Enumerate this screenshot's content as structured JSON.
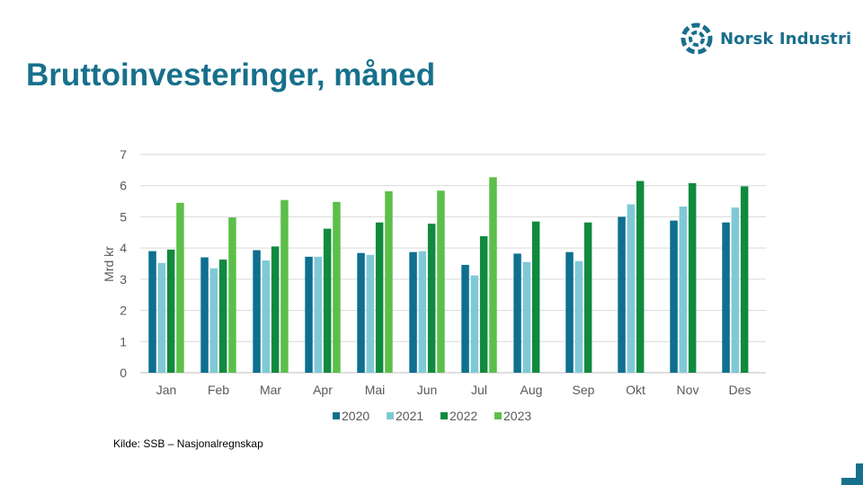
{
  "header": {
    "logo_text": "Norsk Industri",
    "title": "Bruttoinvesteringer, måned"
  },
  "footer": {
    "source": "Kilde: SSB – Nasjonalregnskap"
  },
  "colors": {
    "title": "#17708c",
    "s2020": "#0e6f8f",
    "s2021": "#7fc9d6",
    "s2022": "#108a3e",
    "s2023": "#5cbf4a",
    "grid": "#d9d9d9"
  },
  "chart_data": {
    "type": "bar",
    "title": "",
    "xlabel": "",
    "ylabel": "Mrd kr",
    "ylim": [
      0,
      7
    ],
    "yticks": [
      0,
      1,
      2,
      3,
      4,
      5,
      6,
      7
    ],
    "grid": true,
    "legend_position": "bottom",
    "categories": [
      "Jan",
      "Feb",
      "Mar",
      "Apr",
      "Mai",
      "Jun",
      "Jul",
      "Aug",
      "Sep",
      "Okt",
      "Nov",
      "Des"
    ],
    "series": [
      {
        "name": "2020",
        "values": [
          3.9,
          3.7,
          3.93,
          3.72,
          3.84,
          3.87,
          3.46,
          3.82,
          3.87,
          5.0,
          4.88,
          4.82
        ]
      },
      {
        "name": "2021",
        "values": [
          3.52,
          3.35,
          3.6,
          3.72,
          3.78,
          3.9,
          3.12,
          3.55,
          3.58,
          5.4,
          5.33,
          5.3
        ]
      },
      {
        "name": "2022",
        "values": [
          3.95,
          3.63,
          4.05,
          4.62,
          4.82,
          4.78,
          4.38,
          4.85,
          4.82,
          6.15,
          6.08,
          5.98
        ]
      },
      {
        "name": "2023",
        "values": [
          5.45,
          4.98,
          5.54,
          5.48,
          5.82,
          5.84,
          6.27,
          null,
          null,
          null,
          null,
          null
        ]
      }
    ]
  }
}
